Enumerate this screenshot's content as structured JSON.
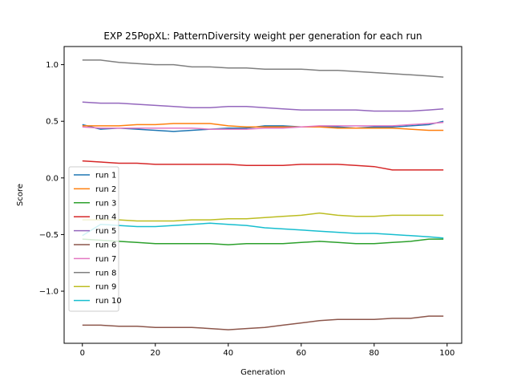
{
  "chart_data": {
    "type": "line",
    "title": "EXP 25PopXL: PatternDiversity weight per generation for each run",
    "xlabel": "Generation",
    "ylabel": "Score",
    "xlim": [
      -5,
      104
    ],
    "ylim": [
      -1.46,
      1.16
    ],
    "xticks": [
      0,
      20,
      40,
      60,
      80,
      100
    ],
    "yticks": [
      -1.0,
      -0.5,
      0.0,
      0.5,
      1.0
    ],
    "ytick_labels": [
      "−1.0",
      "−0.5",
      "0.0",
      "0.5",
      "1.0"
    ],
    "grid": false,
    "legend_position": "lower-left",
    "series": [
      {
        "name": "run 1",
        "color": "#1f77b4",
        "points": [
          [
            0,
            0.47
          ],
          [
            5,
            0.43
          ],
          [
            10,
            0.44
          ],
          [
            15,
            0.43
          ],
          [
            20,
            0.42
          ],
          [
            25,
            0.41
          ],
          [
            30,
            0.42
          ],
          [
            35,
            0.43
          ],
          [
            40,
            0.44
          ],
          [
            45,
            0.44
          ],
          [
            50,
            0.46
          ],
          [
            55,
            0.46
          ],
          [
            60,
            0.45
          ],
          [
            65,
            0.45
          ],
          [
            70,
            0.45
          ],
          [
            75,
            0.44
          ],
          [
            80,
            0.45
          ],
          [
            85,
            0.45
          ],
          [
            90,
            0.46
          ],
          [
            95,
            0.47
          ],
          [
            99,
            0.5
          ]
        ]
      },
      {
        "name": "run 2",
        "color": "#ff7f0e",
        "points": [
          [
            0,
            0.46
          ],
          [
            5,
            0.46
          ],
          [
            10,
            0.46
          ],
          [
            15,
            0.47
          ],
          [
            20,
            0.47
          ],
          [
            25,
            0.48
          ],
          [
            30,
            0.48
          ],
          [
            35,
            0.48
          ],
          [
            40,
            0.46
          ],
          [
            45,
            0.45
          ],
          [
            50,
            0.45
          ],
          [
            55,
            0.45
          ],
          [
            60,
            0.45
          ],
          [
            65,
            0.45
          ],
          [
            70,
            0.44
          ],
          [
            75,
            0.44
          ],
          [
            80,
            0.44
          ],
          [
            85,
            0.44
          ],
          [
            90,
            0.43
          ],
          [
            95,
            0.42
          ],
          [
            99,
            0.42
          ]
        ]
      },
      {
        "name": "run 3",
        "color": "#2ca02c",
        "points": [
          [
            0,
            -0.54
          ],
          [
            5,
            -0.55
          ],
          [
            10,
            -0.56
          ],
          [
            15,
            -0.57
          ],
          [
            20,
            -0.58
          ],
          [
            25,
            -0.58
          ],
          [
            30,
            -0.58
          ],
          [
            35,
            -0.58
          ],
          [
            40,
            -0.59
          ],
          [
            45,
            -0.58
          ],
          [
            50,
            -0.58
          ],
          [
            55,
            -0.58
          ],
          [
            60,
            -0.57
          ],
          [
            65,
            -0.56
          ],
          [
            70,
            -0.57
          ],
          [
            75,
            -0.58
          ],
          [
            80,
            -0.58
          ],
          [
            85,
            -0.57
          ],
          [
            90,
            -0.56
          ],
          [
            95,
            -0.54
          ],
          [
            99,
            -0.54
          ]
        ]
      },
      {
        "name": "run 4",
        "color": "#d62728",
        "points": [
          [
            0,
            0.15
          ],
          [
            5,
            0.14
          ],
          [
            10,
            0.13
          ],
          [
            15,
            0.13
          ],
          [
            20,
            0.12
          ],
          [
            25,
            0.12
          ],
          [
            30,
            0.12
          ],
          [
            35,
            0.12
          ],
          [
            40,
            0.12
          ],
          [
            45,
            0.11
          ],
          [
            50,
            0.11
          ],
          [
            55,
            0.11
          ],
          [
            60,
            0.12
          ],
          [
            65,
            0.12
          ],
          [
            70,
            0.12
          ],
          [
            75,
            0.11
          ],
          [
            80,
            0.1
          ],
          [
            85,
            0.07
          ],
          [
            90,
            0.07
          ],
          [
            95,
            0.07
          ],
          [
            99,
            0.07
          ]
        ]
      },
      {
        "name": "run 5",
        "color": "#9467bd",
        "points": [
          [
            0,
            0.67
          ],
          [
            5,
            0.66
          ],
          [
            10,
            0.66
          ],
          [
            15,
            0.65
          ],
          [
            20,
            0.64
          ],
          [
            25,
            0.63
          ],
          [
            30,
            0.62
          ],
          [
            35,
            0.62
          ],
          [
            40,
            0.63
          ],
          [
            45,
            0.63
          ],
          [
            50,
            0.62
          ],
          [
            55,
            0.61
          ],
          [
            60,
            0.6
          ],
          [
            65,
            0.6
          ],
          [
            70,
            0.6
          ],
          [
            75,
            0.6
          ],
          [
            80,
            0.59
          ],
          [
            85,
            0.59
          ],
          [
            90,
            0.59
          ],
          [
            95,
            0.6
          ],
          [
            99,
            0.61
          ]
        ]
      },
      {
        "name": "run 6",
        "color": "#8c564b",
        "points": [
          [
            0,
            -1.3
          ],
          [
            5,
            -1.3
          ],
          [
            10,
            -1.31
          ],
          [
            15,
            -1.31
          ],
          [
            20,
            -1.32
          ],
          [
            25,
            -1.32
          ],
          [
            30,
            -1.32
          ],
          [
            35,
            -1.33
          ],
          [
            40,
            -1.34
          ],
          [
            45,
            -1.33
          ],
          [
            50,
            -1.32
          ],
          [
            55,
            -1.3
          ],
          [
            60,
            -1.28
          ],
          [
            65,
            -1.26
          ],
          [
            70,
            -1.25
          ],
          [
            75,
            -1.25
          ],
          [
            80,
            -1.25
          ],
          [
            85,
            -1.24
          ],
          [
            90,
            -1.24
          ],
          [
            95,
            -1.22
          ],
          [
            99,
            -1.22
          ]
        ]
      },
      {
        "name": "run 7",
        "color": "#e377c2",
        "points": [
          [
            0,
            0.45
          ],
          [
            5,
            0.44
          ],
          [
            10,
            0.44
          ],
          [
            15,
            0.44
          ],
          [
            20,
            0.44
          ],
          [
            25,
            0.44
          ],
          [
            30,
            0.44
          ],
          [
            35,
            0.43
          ],
          [
            40,
            0.43
          ],
          [
            45,
            0.43
          ],
          [
            50,
            0.44
          ],
          [
            55,
            0.44
          ],
          [
            60,
            0.45
          ],
          [
            65,
            0.46
          ],
          [
            70,
            0.46
          ],
          [
            75,
            0.46
          ],
          [
            80,
            0.46
          ],
          [
            85,
            0.46
          ],
          [
            90,
            0.47
          ],
          [
            95,
            0.48
          ],
          [
            99,
            0.49
          ]
        ]
      },
      {
        "name": "run 8",
        "color": "#7f7f7f",
        "points": [
          [
            0,
            1.04
          ],
          [
            5,
            1.04
          ],
          [
            10,
            1.02
          ],
          [
            15,
            1.01
          ],
          [
            20,
            1.0
          ],
          [
            25,
            1.0
          ],
          [
            30,
            0.98
          ],
          [
            35,
            0.98
          ],
          [
            40,
            0.97
          ],
          [
            45,
            0.97
          ],
          [
            50,
            0.96
          ],
          [
            55,
            0.96
          ],
          [
            60,
            0.96
          ],
          [
            65,
            0.95
          ],
          [
            70,
            0.95
          ],
          [
            75,
            0.94
          ],
          [
            80,
            0.93
          ],
          [
            85,
            0.92
          ],
          [
            90,
            0.91
          ],
          [
            95,
            0.9
          ],
          [
            99,
            0.89
          ]
        ]
      },
      {
        "name": "run 9",
        "color": "#bcbd22",
        "points": [
          [
            0,
            -0.37
          ],
          [
            5,
            -0.37
          ],
          [
            10,
            -0.37
          ],
          [
            15,
            -0.38
          ],
          [
            20,
            -0.38
          ],
          [
            25,
            -0.38
          ],
          [
            30,
            -0.37
          ],
          [
            35,
            -0.37
          ],
          [
            40,
            -0.36
          ],
          [
            45,
            -0.36
          ],
          [
            50,
            -0.35
          ],
          [
            55,
            -0.34
          ],
          [
            60,
            -0.33
          ],
          [
            65,
            -0.31
          ],
          [
            70,
            -0.33
          ],
          [
            75,
            -0.34
          ],
          [
            80,
            -0.34
          ],
          [
            85,
            -0.33
          ],
          [
            90,
            -0.33
          ],
          [
            95,
            -0.33
          ],
          [
            99,
            -0.33
          ]
        ]
      },
      {
        "name": "run 10",
        "color": "#17becf",
        "points": [
          [
            0,
            -0.51
          ],
          [
            5,
            -0.41
          ],
          [
            10,
            -0.42
          ],
          [
            15,
            -0.43
          ],
          [
            20,
            -0.43
          ],
          [
            25,
            -0.42
          ],
          [
            30,
            -0.41
          ],
          [
            35,
            -0.4
          ],
          [
            40,
            -0.41
          ],
          [
            45,
            -0.42
          ],
          [
            50,
            -0.44
          ],
          [
            55,
            -0.45
          ],
          [
            60,
            -0.46
          ],
          [
            65,
            -0.47
          ],
          [
            70,
            -0.48
          ],
          [
            75,
            -0.49
          ],
          [
            80,
            -0.49
          ],
          [
            85,
            -0.5
          ],
          [
            90,
            -0.51
          ],
          [
            95,
            -0.52
          ],
          [
            99,
            -0.53
          ]
        ]
      }
    ]
  }
}
